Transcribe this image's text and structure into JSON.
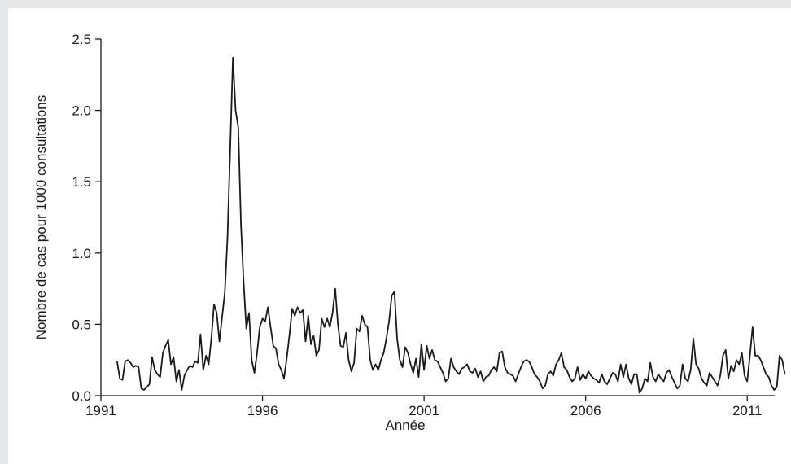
{
  "chart_data": {
    "type": "line",
    "title": "",
    "xlabel": "Année",
    "ylabel": "Nombre de cas pour 1000 consultations",
    "xlim": [
      1991,
      2011.85
    ],
    "ylim": [
      0,
      2.5
    ],
    "x_ticks": [
      "1991",
      "1996",
      "2001",
      "2006",
      "2011"
    ],
    "y_ticks": [
      "0.0",
      "0.5",
      "1.0",
      "1.5",
      "2.0",
      "2.5"
    ],
    "grid": false,
    "line_color": "#1a1a1a",
    "series": [
      {
        "x_start": 1991.5,
        "x_step": 0.08333,
        "values": [
          0.24,
          0.12,
          0.11,
          0.24,
          0.25,
          0.23,
          0.2,
          0.21,
          0.2,
          0.05,
          0.04,
          0.06,
          0.08,
          0.27,
          0.18,
          0.15,
          0.13,
          0.3,
          0.35,
          0.39,
          0.22,
          0.27,
          0.1,
          0.18,
          0.04,
          0.14,
          0.18,
          0.21,
          0.2,
          0.24,
          0.23,
          0.43,
          0.18,
          0.28,
          0.22,
          0.4,
          0.64,
          0.58,
          0.38,
          0.55,
          0.72,
          1.1,
          1.72,
          2.37,
          2.0,
          1.88,
          1.2,
          0.79,
          0.47,
          0.58,
          0.25,
          0.16,
          0.3,
          0.48,
          0.54,
          0.52,
          0.62,
          0.48,
          0.35,
          0.33,
          0.22,
          0.18,
          0.12,
          0.26,
          0.42,
          0.61,
          0.56,
          0.62,
          0.58,
          0.6,
          0.38,
          0.56,
          0.36,
          0.42,
          0.28,
          0.32,
          0.54,
          0.48,
          0.54,
          0.48,
          0.58,
          0.75,
          0.5,
          0.35,
          0.34,
          0.44,
          0.25,
          0.17,
          0.23,
          0.47,
          0.45,
          0.56,
          0.5,
          0.48,
          0.25,
          0.18,
          0.22,
          0.18,
          0.25,
          0.3,
          0.4,
          0.52,
          0.7,
          0.73,
          0.4,
          0.25,
          0.2,
          0.34,
          0.3,
          0.22,
          0.16,
          0.26,
          0.13,
          0.36,
          0.18,
          0.35,
          0.26,
          0.32,
          0.25,
          0.24,
          0.2,
          0.16,
          0.1,
          0.12,
          0.26,
          0.2,
          0.17,
          0.15,
          0.19,
          0.2,
          0.22,
          0.17,
          0.16,
          0.19,
          0.13,
          0.17,
          0.1,
          0.13,
          0.14,
          0.18,
          0.2,
          0.17,
          0.3,
          0.31,
          0.2,
          0.16,
          0.15,
          0.14,
          0.1,
          0.15,
          0.2,
          0.24,
          0.25,
          0.24,
          0.2,
          0.15,
          0.13,
          0.1,
          0.05,
          0.07,
          0.15,
          0.17,
          0.14,
          0.22,
          0.25,
          0.3,
          0.2,
          0.18,
          0.13,
          0.1,
          0.12,
          0.2,
          0.11,
          0.15,
          0.12,
          0.17,
          0.14,
          0.12,
          0.11,
          0.09,
          0.15,
          0.1,
          0.08,
          0.12,
          0.16,
          0.15,
          0.1,
          0.22,
          0.13,
          0.22,
          0.12,
          0.08,
          0.15,
          0.15,
          0.02,
          0.05,
          0.12,
          0.1,
          0.23,
          0.13,
          0.1,
          0.15,
          0.12,
          0.1,
          0.16,
          0.18,
          0.13,
          0.09,
          0.05,
          0.07,
          0.22,
          0.12,
          0.1,
          0.18,
          0.4,
          0.22,
          0.19,
          0.12,
          0.09,
          0.07,
          0.16,
          0.13,
          0.1,
          0.07,
          0.14,
          0.28,
          0.32,
          0.12,
          0.21,
          0.17,
          0.25,
          0.22,
          0.3,
          0.14,
          0.1,
          0.28,
          0.48,
          0.28,
          0.28,
          0.25,
          0.2,
          0.15,
          0.13,
          0.07,
          0.04,
          0.06,
          0.28,
          0.25,
          0.15
        ]
      }
    ]
  }
}
